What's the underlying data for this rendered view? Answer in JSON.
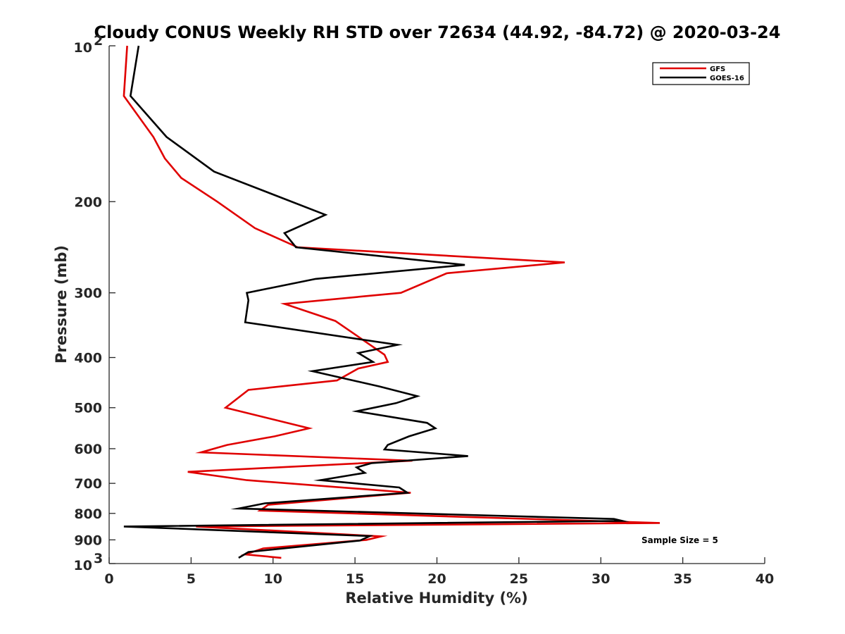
{
  "chart_data": {
    "type": "line",
    "title": "Cloudy CONUS Weekly RH STD over 72634 (44.92, -84.72) @ 2020-03-24",
    "xlabel": "Relative Humidity (%)",
    "ylabel": "Pressure (mb)",
    "xlim": [
      0,
      40
    ],
    "ylim": [
      100,
      1000
    ],
    "yscale": "log",
    "yaxis_reversed": true,
    "x_ticks": [
      "0",
      "5",
      "10",
      "15",
      "20",
      "25",
      "30",
      "35",
      "40"
    ],
    "y_ticks": [
      {
        "value": 100,
        "base": "10",
        "exp": "2"
      },
      {
        "value": 200,
        "text": "200"
      },
      {
        "value": 300,
        "text": "300"
      },
      {
        "value": 400,
        "text": "400"
      },
      {
        "value": 500,
        "text": "500"
      },
      {
        "value": 600,
        "text": "600"
      },
      {
        "value": 700,
        "text": "700"
      },
      {
        "value": 800,
        "text": "800"
      },
      {
        "value": 900,
        "text": "900"
      },
      {
        "value": 1000,
        "base": "10",
        "exp": "3"
      }
    ],
    "legend_position": "top-right",
    "annotation": "Sample Size = 5",
    "series": [
      {
        "name": "GFS",
        "color": "#e00000",
        "points": [
          [
            1.1,
            100
          ],
          [
            0.9,
            125
          ],
          [
            2.7,
            150
          ],
          [
            3.4,
            165
          ],
          [
            4.4,
            180
          ],
          [
            6.6,
            200
          ],
          [
            8.9,
            225
          ],
          [
            11.5,
            245
          ],
          [
            27.8,
            262
          ],
          [
            20.6,
            275
          ],
          [
            17.8,
            300
          ],
          [
            10.7,
            315
          ],
          [
            13.8,
            340
          ],
          [
            16.8,
            395
          ],
          [
            17.0,
            408
          ],
          [
            15.2,
            420
          ],
          [
            13.9,
            443
          ],
          [
            8.5,
            462
          ],
          [
            7.1,
            500
          ],
          [
            12.2,
            548
          ],
          [
            10.1,
            568
          ],
          [
            7.2,
            590
          ],
          [
            5.6,
            610
          ],
          [
            18.5,
            633
          ],
          [
            4.8,
            665
          ],
          [
            8.4,
            690
          ],
          [
            18.4,
            730
          ],
          [
            17.6,
            733
          ],
          [
            9.7,
            770
          ],
          [
            9.2,
            790
          ],
          [
            33.6,
            835
          ],
          [
            5.3,
            848
          ],
          [
            16.6,
            886
          ],
          [
            15.7,
            900
          ],
          [
            9.4,
            935
          ],
          [
            8.3,
            960
          ],
          [
            10.5,
            975
          ]
        ]
      },
      {
        "name": "GOES-16",
        "color": "#000000",
        "points": [
          [
            1.8,
            100
          ],
          [
            1.3,
            125
          ],
          [
            3.5,
            150
          ],
          [
            6.4,
            175
          ],
          [
            13.2,
            212
          ],
          [
            10.7,
            230
          ],
          [
            11.4,
            245
          ],
          [
            21.7,
            265
          ],
          [
            12.6,
            282
          ],
          [
            8.4,
            300
          ],
          [
            8.5,
            310
          ],
          [
            8.3,
            342
          ],
          [
            17.6,
            378
          ],
          [
            15.2,
            392
          ],
          [
            16.1,
            408
          ],
          [
            12.4,
            425
          ],
          [
            16.5,
            455
          ],
          [
            18.8,
            475
          ],
          [
            17.5,
            490
          ],
          [
            15.1,
            508
          ],
          [
            19.4,
            535
          ],
          [
            19.9,
            548
          ],
          [
            18.3,
            568
          ],
          [
            17.0,
            590
          ],
          [
            16.8,
            602
          ],
          [
            21.9,
            620
          ],
          [
            16.0,
            640
          ],
          [
            15.1,
            652
          ],
          [
            15.6,
            668
          ],
          [
            12.9,
            690
          ],
          [
            17.7,
            713
          ],
          [
            18.2,
            730
          ],
          [
            9.5,
            765
          ],
          [
            7.9,
            783
          ],
          [
            30.8,
            820
          ],
          [
            31.3,
            827
          ],
          [
            0.9,
            848
          ],
          [
            15.9,
            885
          ],
          [
            15.3,
            903
          ],
          [
            8.5,
            950
          ],
          [
            7.9,
            975
          ]
        ]
      }
    ]
  }
}
